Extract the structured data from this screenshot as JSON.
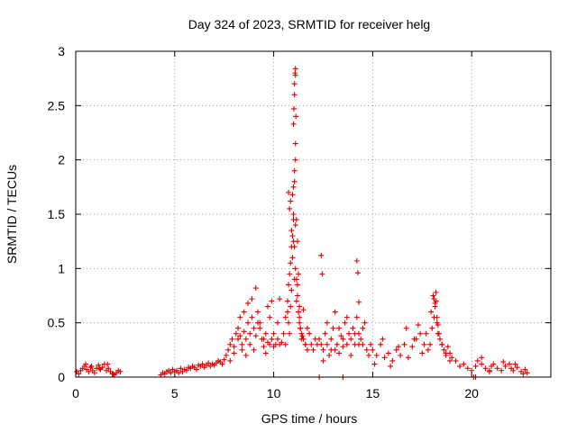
{
  "chart_data": {
    "type": "scatter",
    "title": "Day 324 of 2023, SRMTID for receiver helg",
    "xlabel": "GPS time / hours",
    "ylabel": "SRMTID / TECUs",
    "xlim": [
      0,
      24
    ],
    "ylim": [
      0,
      3
    ],
    "x_ticks": [
      0,
      5,
      10,
      15,
      20
    ],
    "x_tick_labels": [
      "0",
      "5",
      "10",
      "15",
      "20"
    ],
    "y_ticks": [
      0,
      0.5,
      1,
      1.5,
      2,
      2.5,
      3
    ],
    "y_tick_labels": [
      "0",
      "0.5",
      "1",
      "1.5",
      "2",
      "2.5",
      "3"
    ],
    "grid": true,
    "marker": "plus",
    "color": "#e00000",
    "series": [
      {
        "name": "SRMTID",
        "x": [
          0.05,
          0.15,
          0.25,
          0.35,
          0.45,
          0.55,
          0.65,
          0.75,
          0.85,
          0.95,
          1.05,
          1.15,
          1.25,
          1.35,
          1.45,
          1.55,
          1.65,
          1.75,
          1.85,
          1.95,
          2.05,
          2.15,
          2.25,
          0.5,
          0.8,
          1.2,
          1.6,
          1.9,
          4.3,
          4.4,
          4.5,
          4.6,
          4.7,
          4.8,
          4.9,
          5.0,
          5.1,
          5.2,
          5.3,
          5.4,
          5.5,
          5.6,
          5.7,
          5.8,
          5.9,
          6.0,
          6.1,
          6.2,
          6.3,
          6.4,
          6.5,
          6.6,
          6.7,
          6.8,
          6.9,
          7.0,
          7.1,
          7.2,
          7.3,
          7.4,
          7.5,
          7.6,
          7.7,
          7.8,
          7.9,
          8.0,
          8.1,
          8.2,
          8.3,
          8.4,
          8.5,
          8.6,
          8.7,
          8.8,
          8.9,
          9.0,
          9.1,
          9.2,
          9.3,
          9.4,
          9.5,
          9.6,
          9.7,
          9.8,
          9.9,
          10.0,
          10.1,
          10.2,
          10.3,
          10.4,
          7.8,
          8.0,
          8.2,
          8.3,
          8.4,
          8.5,
          8.6,
          8.7,
          8.8,
          8.9,
          9.0,
          9.1,
          9.2,
          9.3,
          9.5,
          9.6,
          9.7,
          9.8,
          9.9,
          10.0,
          10.2,
          10.3,
          10.5,
          10.6,
          10.7,
          10.75,
          10.8,
          10.85,
          10.9,
          10.95,
          11.0,
          11.05,
          11.1,
          11.15,
          11.2,
          11.25,
          11.3,
          11.35,
          11.4,
          11.45,
          11.5,
          11.6,
          11.7,
          11.8,
          11.9,
          12.0,
          12.1,
          12.2,
          10.6,
          10.7,
          10.75,
          10.8,
          10.85,
          10.9,
          10.95,
          11.0,
          11.05,
          11.1,
          11.15,
          11.2,
          11.25,
          11.3,
          11.35,
          11.4,
          11.5,
          11.6,
          11.7,
          10.75,
          10.8,
          10.85,
          10.9,
          10.95,
          11.0,
          11.0,
          11.05,
          11.05,
          11.1,
          11.1,
          11.15,
          11.2,
          11.25,
          11.3,
          11.0,
          11.02,
          11.05,
          11.05,
          11.08,
          11.1,
          11.1,
          11.12,
          12.3,
          12.4,
          12.5,
          12.6,
          12.7,
          12.8,
          12.9,
          13.0,
          13.1,
          13.2,
          13.3,
          13.4,
          13.5,
          13.6,
          13.7,
          13.8,
          13.9,
          14.0,
          14.1,
          14.2,
          14.3,
          14.4,
          14.5,
          14.6,
          14.7,
          14.8,
          14.9,
          12.5,
          12.7,
          12.9,
          13.1,
          13.3,
          13.5,
          13.7,
          13.9,
          14.1,
          14.3,
          14.5,
          12.4,
          12.45,
          14.2,
          14.25,
          14.3,
          15.0,
          15.2,
          15.4,
          15.6,
          15.8,
          16.0,
          16.2,
          16.4,
          16.6,
          16.8,
          17.0,
          17.2,
          17.4,
          17.6,
          17.8,
          15.1,
          15.5,
          15.9,
          16.3,
          16.7,
          17.1,
          17.3,
          17.5,
          17.7,
          17.9,
          18.0,
          18.1,
          18.15,
          18.2,
          18.25,
          18.3,
          18.4,
          18.5,
          18.6,
          18.7,
          18.8,
          18.9,
          19.0,
          19.2,
          19.4,
          19.6,
          19.8,
          20.0,
          17.95,
          18.05,
          18.1,
          18.15,
          18.2,
          18.25,
          18.3,
          18.35,
          18.5,
          18.7,
          18.9,
          20.2,
          20.3,
          20.5,
          20.7,
          20.9,
          21.0,
          21.1,
          21.3,
          21.5,
          21.7,
          21.9,
          22.0,
          22.1,
          22.3,
          22.5,
          22.7,
          22.8,
          20.5,
          20.9,
          21.6,
          22.2,
          22.6,
          12.3,
          13.5,
          20.1,
          20.2
        ],
        "y": [
          0.05,
          0.03,
          0.06,
          0.08,
          0.1,
          0.07,
          0.05,
          0.09,
          0.06,
          0.04,
          0.08,
          0.11,
          0.07,
          0.09,
          0.12,
          0.06,
          0.08,
          0.05,
          0.03,
          0.02,
          0.04,
          0.06,
          0.05,
          0.12,
          0.1,
          0.08,
          0.12,
          0.03,
          0.02,
          0.04,
          0.03,
          0.05,
          0.06,
          0.04,
          0.07,
          0.05,
          0.06,
          0.04,
          0.08,
          0.05,
          0.07,
          0.06,
          0.09,
          0.08,
          0.1,
          0.09,
          0.07,
          0.11,
          0.1,
          0.12,
          0.09,
          0.11,
          0.13,
          0.1,
          0.12,
          0.11,
          0.13,
          0.15,
          0.14,
          0.12,
          0.16,
          0.2,
          0.25,
          0.3,
          0.35,
          0.28,
          0.4,
          0.45,
          0.38,
          0.3,
          0.42,
          0.35,
          0.5,
          0.4,
          0.55,
          0.45,
          0.38,
          0.6,
          0.5,
          0.35,
          0.28,
          0.4,
          0.32,
          0.3,
          0.35,
          0.28,
          0.3,
          0.35,
          0.3,
          0.32,
          0.15,
          0.22,
          0.35,
          0.55,
          0.25,
          0.6,
          0.2,
          0.68,
          0.3,
          0.72,
          0.25,
          0.82,
          0.5,
          0.45,
          0.35,
          0.22,
          0.65,
          0.55,
          0.7,
          0.4,
          0.5,
          0.72,
          0.4,
          0.55,
          0.7,
          0.85,
          0.95,
          1.05,
          1.2,
          1.3,
          1.45,
          1.2,
          1.0,
          0.9,
          0.75,
          0.6,
          0.55,
          0.45,
          0.4,
          0.38,
          0.35,
          0.3,
          0.45,
          0.4,
          0.3,
          0.25,
          0.35,
          0.3,
          0.3,
          0.6,
          0.5,
          0.4,
          0.65,
          0.8,
          1.1,
          1.25,
          0.9,
          1.4,
          0.7,
          0.85,
          0.6,
          0.5,
          0.45,
          0.35,
          0.62,
          0.3,
          0.25,
          1.7,
          1.55,
          1.62,
          1.35,
          1.68,
          1.5,
          1.75,
          1.9,
          1.8,
          2.0,
          2.15,
          1.45,
          1.25,
          0.95,
          0.65,
          2.33,
          2.47,
          2.6,
          2.7,
          2.8,
          2.78,
          2.84,
          2.4,
          0.35,
          0.3,
          0.25,
          0.4,
          0.3,
          0.2,
          0.35,
          0.45,
          0.25,
          0.3,
          0.22,
          0.38,
          0.28,
          0.5,
          0.3,
          0.4,
          0.35,
          0.45,
          0.3,
          0.55,
          0.4,
          0.35,
          0.3,
          0.5,
          0.25,
          0.2,
          0.3,
          0.15,
          0.5,
          0.25,
          0.6,
          0.45,
          0.35,
          0.55,
          0.2,
          0.4,
          0.3,
          0.45,
          1.12,
          0.95,
          1.07,
          0.96,
          0.69,
          0.25,
          0.2,
          0.3,
          0.18,
          0.22,
          0.15,
          0.25,
          0.2,
          0.3,
          0.18,
          0.28,
          0.35,
          0.4,
          0.3,
          0.25,
          0.12,
          0.35,
          0.1,
          0.28,
          0.45,
          0.35,
          0.48,
          0.22,
          0.4,
          0.3,
          0.45,
          0.55,
          0.65,
          0.7,
          0.5,
          0.4,
          0.35,
          0.3,
          0.25,
          0.2,
          0.28,
          0.22,
          0.18,
          0.15,
          0.1,
          0.12,
          0.08,
          0.06,
          0.6,
          0.75,
          0.72,
          0.68,
          0.78,
          0.55,
          0.48,
          0.4,
          0.3,
          0.22,
          0.15,
          0.1,
          0.15,
          0.12,
          0.08,
          0.06,
          0.1,
          0.12,
          0.08,
          0.06,
          0.1,
          0.12,
          0.08,
          0.06,
          0.09,
          0.05,
          0.07,
          0.04,
          0.18,
          0.05,
          0.14,
          0.12,
          0.03,
          0.0,
          0.0,
          0.0,
          0.0
        ]
      }
    ]
  }
}
